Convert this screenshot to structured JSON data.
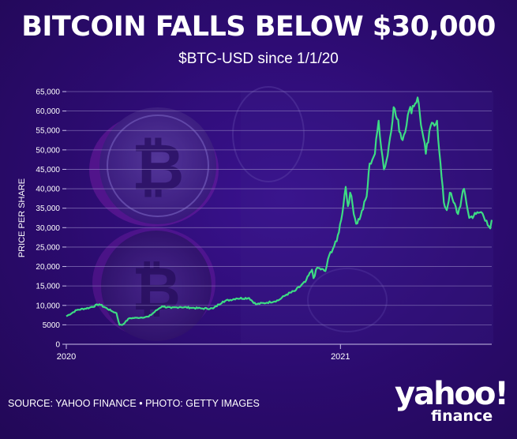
{
  "header": {
    "title": "BITCOIN FALLS BELOW $30,000",
    "subtitle": "$BTC-USD since 1/1/20"
  },
  "footer": {
    "source": "SOURCE: YAHOO FINANCE • PHOTO: GETTY IMAGES",
    "logo_word": "yahoo!",
    "logo_sub": "finance"
  },
  "colors": {
    "background": "#2b0b6e",
    "line": "#3ddc84",
    "grid": "#8f7fc0",
    "text": "#ffffff"
  },
  "chart_data": {
    "type": "line",
    "title": "BITCOIN FALLS BELOW $30,000",
    "subtitle": "$BTC-USD since 1/1/20",
    "xlabel": "",
    "ylabel": "PRICE PER SHARE",
    "ylim": [
      0,
      65000
    ],
    "xlim": [
      "2020-01-01",
      "2021-07-22"
    ],
    "grid": "horizontal",
    "y_ticks": [
      "0",
      "5000",
      "10,000",
      "15,000",
      "20,000",
      "25,000",
      "30,000",
      "35,000",
      "40,000",
      "45,000",
      "50,000",
      "55,000",
      "60,000",
      "65,000"
    ],
    "x_ticks": [
      {
        "label": "2020",
        "date": "2020-01-01"
      },
      {
        "label": "2021",
        "date": "2021-01-01"
      }
    ],
    "series": [
      {
        "points": [
          [
            "2020-01-01",
            7200
          ],
          [
            "2020-01-15",
            8800
          ],
          [
            "2020-02-01",
            9400
          ],
          [
            "2020-02-14",
            10300
          ],
          [
            "2020-03-01",
            8600
          ],
          [
            "2020-03-08",
            8000
          ],
          [
            "2020-03-12",
            5000
          ],
          [
            "2020-03-16",
            5000
          ],
          [
            "2020-03-25",
            6700
          ],
          [
            "2020-04-05",
            6800
          ],
          [
            "2020-04-20",
            7100
          ],
          [
            "2020-05-01",
            8800
          ],
          [
            "2020-05-08",
            9800
          ],
          [
            "2020-05-20",
            9300
          ],
          [
            "2020-06-01",
            9600
          ],
          [
            "2020-06-15",
            9400
          ],
          [
            "2020-07-01",
            9200
          ],
          [
            "2020-07-15",
            9200
          ],
          [
            "2020-07-28",
            11000
          ],
          [
            "2020-08-15",
            11800
          ],
          [
            "2020-09-01",
            11900
          ],
          [
            "2020-09-10",
            10300
          ],
          [
            "2020-09-25",
            10700
          ],
          [
            "2020-10-10",
            11300
          ],
          [
            "2020-10-21",
            12800
          ],
          [
            "2020-11-01",
            13700
          ],
          [
            "2020-11-15",
            16000
          ],
          [
            "2020-11-24",
            19200
          ],
          [
            "2020-11-26",
            17000
          ],
          [
            "2020-12-01",
            19700
          ],
          [
            "2020-12-12",
            18800
          ],
          [
            "2020-12-17",
            22900
          ],
          [
            "2020-12-27",
            26500
          ],
          [
            "2021-01-02",
            32000
          ],
          [
            "2021-01-08",
            40500
          ],
          [
            "2021-01-11",
            35500
          ],
          [
            "2021-01-14",
            39000
          ],
          [
            "2021-01-22",
            31000
          ],
          [
            "2021-01-28",
            33000
          ],
          [
            "2021-02-05",
            38000
          ],
          [
            "2021-02-09",
            46500
          ],
          [
            "2021-02-16",
            49000
          ],
          [
            "2021-02-21",
            57500
          ],
          [
            "2021-02-28",
            45000
          ],
          [
            "2021-03-05",
            48500
          ],
          [
            "2021-03-13",
            61000
          ],
          [
            "2021-03-25",
            52500
          ],
          [
            "2021-04-01",
            59000
          ],
          [
            "2021-04-14",
            63500
          ],
          [
            "2021-04-20",
            55000
          ],
          [
            "2021-04-25",
            49000
          ],
          [
            "2021-05-03",
            57000
          ],
          [
            "2021-05-10",
            57500
          ],
          [
            "2021-05-13",
            49500
          ],
          [
            "2021-05-19",
            36500
          ],
          [
            "2021-05-23",
            34500
          ],
          [
            "2021-05-27",
            39000
          ],
          [
            "2021-06-01",
            36500
          ],
          [
            "2021-06-07",
            33500
          ],
          [
            "2021-06-15",
            40000
          ],
          [
            "2021-06-22",
            32500
          ],
          [
            "2021-07-01",
            33500
          ],
          [
            "2021-07-08",
            34000
          ],
          [
            "2021-07-15",
            31800
          ],
          [
            "2021-07-20",
            29800
          ],
          [
            "2021-07-22",
            32000
          ]
        ]
      }
    ]
  }
}
